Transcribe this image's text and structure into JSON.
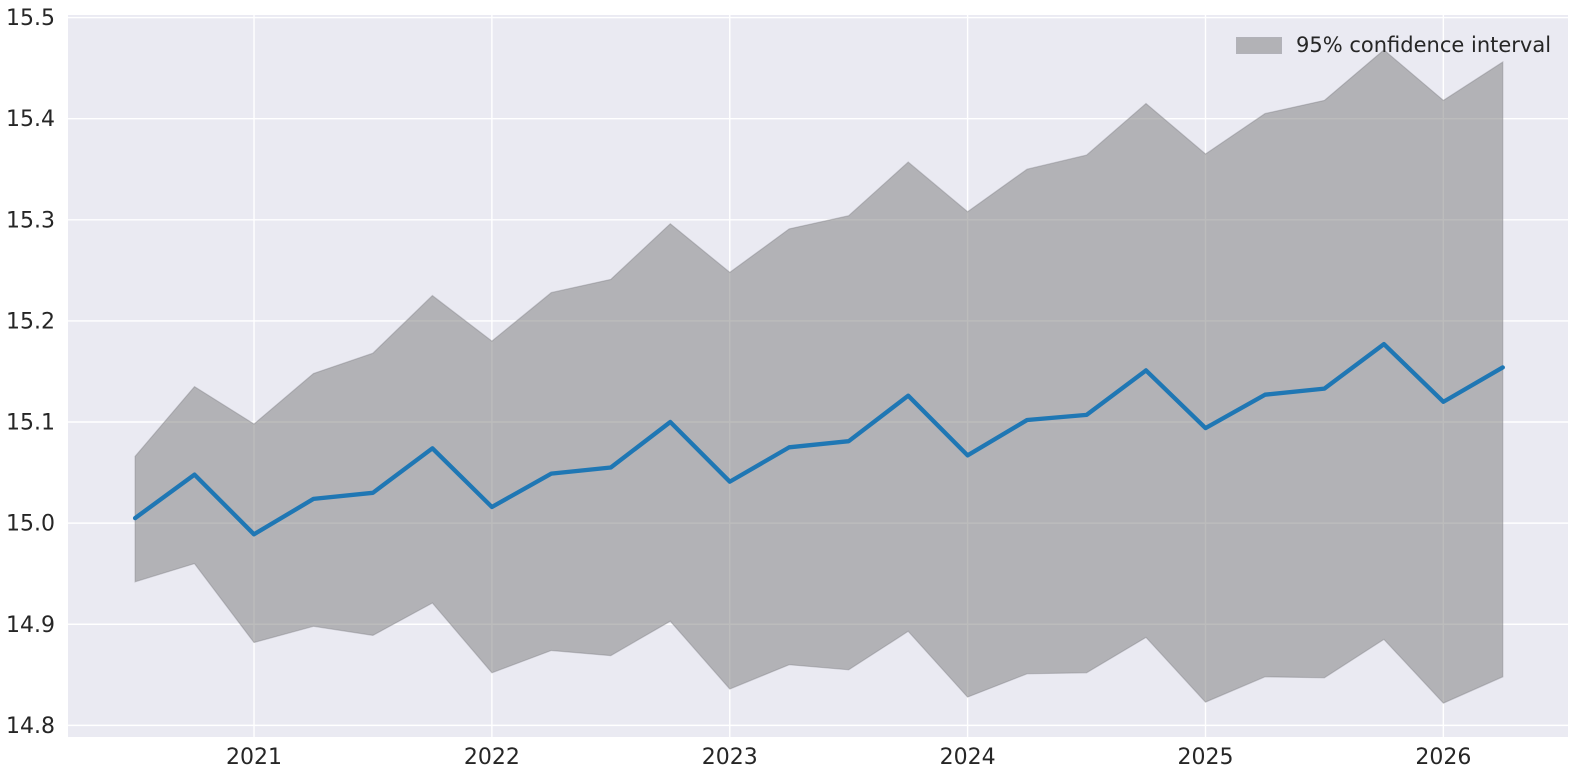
{
  "chart_data": {
    "type": "line",
    "title": "",
    "legend": {
      "label": "95% confidence interval",
      "position": "upper right"
    },
    "x_periods": [
      "2020-Q3",
      "2020-Q4",
      "2021-Q1",
      "2021-Q2",
      "2021-Q3",
      "2021-Q4",
      "2022-Q1",
      "2022-Q2",
      "2022-Q3",
      "2022-Q4",
      "2023-Q1",
      "2023-Q2",
      "2023-Q3",
      "2023-Q4",
      "2024-Q1",
      "2024-Q2",
      "2024-Q3",
      "2024-Q4",
      "2025-Q1",
      "2025-Q2",
      "2025-Q3",
      "2025-Q4",
      "2026-Q1",
      "2026-Q2"
    ],
    "x": [
      2020.5,
      2020.75,
      2021.0,
      2021.25,
      2021.5,
      2021.75,
      2022.0,
      2022.25,
      2022.5,
      2022.75,
      2023.0,
      2023.25,
      2023.5,
      2023.75,
      2024.0,
      2024.25,
      2024.5,
      2024.75,
      2025.0,
      2025.25,
      2025.5,
      2025.75,
      2026.0,
      2026.25
    ],
    "series": [
      {
        "name": "forecast_mean",
        "color": "#1f77b4",
        "values": [
          15.005,
          15.048,
          14.989,
          15.024,
          15.03,
          15.074,
          15.016,
          15.049,
          15.055,
          15.1,
          15.041,
          15.075,
          15.081,
          15.126,
          15.067,
          15.102,
          15.107,
          15.151,
          15.094,
          15.127,
          15.133,
          15.177,
          15.12,
          15.154
        ]
      },
      {
        "name": "ci_upper_95",
        "color": "#808080",
        "values": [
          15.066,
          15.135,
          15.098,
          15.148,
          15.168,
          15.225,
          15.18,
          15.228,
          15.241,
          15.296,
          15.248,
          15.291,
          15.304,
          15.357,
          15.308,
          15.35,
          15.364,
          15.415,
          15.365,
          15.405,
          15.418,
          15.468,
          15.418,
          15.456
        ]
      },
      {
        "name": "ci_lower_95",
        "color": "#808080",
        "values": [
          14.942,
          14.96,
          14.882,
          14.898,
          14.889,
          14.921,
          14.852,
          14.874,
          14.869,
          14.903,
          14.836,
          14.86,
          14.855,
          14.893,
          14.828,
          14.851,
          14.852,
          14.887,
          14.823,
          14.848,
          14.847,
          14.885,
          14.822,
          14.848
        ]
      }
    ],
    "band": {
      "upper_series": "ci_upper_95",
      "lower_series": "ci_lower_95",
      "color": "#808080",
      "opacity": 0.53
    },
    "xlabel": "",
    "ylabel": "",
    "xlim": [
      2020.218,
      2026.524
    ],
    "ylim": [
      14.7885,
      15.5025
    ],
    "xticks": [
      2021,
      2022,
      2023,
      2024,
      2025,
      2026
    ],
    "yticks": [
      14.8,
      14.9,
      15.0,
      15.1,
      15.2,
      15.3,
      15.4,
      15.5
    ],
    "grid": true,
    "legend_position": "upper right",
    "colors": {
      "figure_bg": "#ffffff",
      "plot_bg": "#eaeaf2",
      "grid": "#ffffff",
      "line": "#1f77b4",
      "band": "#808080",
      "tick_text": "#262626"
    }
  }
}
